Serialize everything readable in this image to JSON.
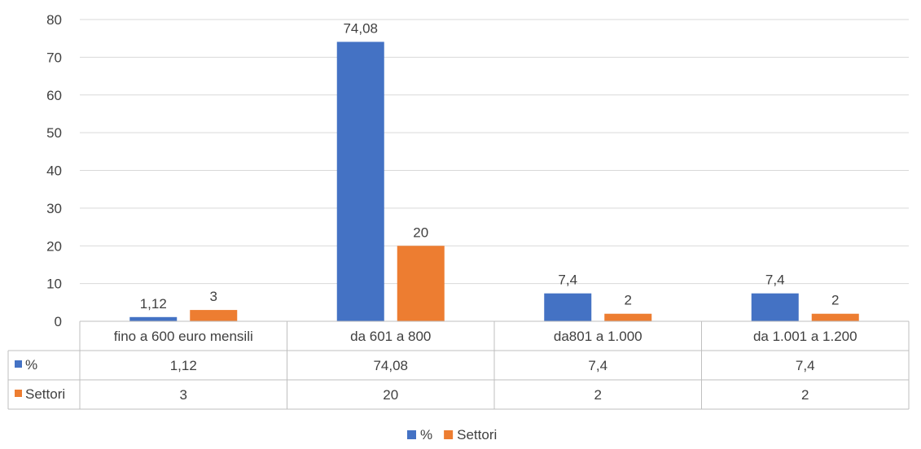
{
  "chart_data": {
    "type": "bar",
    "categories": [
      "fino a 600 euro mensili",
      "da 601 a 800",
      "da801 a 1.000",
      "da 1.001 a 1.200"
    ],
    "series": [
      {
        "name": "%",
        "values": [
          1.12,
          74.08,
          7.4,
          7.4
        ],
        "labels": [
          "1,12",
          "74,08",
          "7,4",
          "7,4"
        ],
        "color": "#4472c4"
      },
      {
        "name": "Settori",
        "values": [
          3,
          20,
          2,
          2
        ],
        "labels": [
          "3",
          "20",
          "2",
          "2"
        ],
        "color": "#ed7d31"
      }
    ],
    "ylim": [
      0,
      80
    ],
    "yticks": [
      "0",
      "10",
      "20",
      "30",
      "40",
      "50",
      "60",
      "70",
      "80"
    ],
    "grid": true,
    "legend": "bottom",
    "data_table": true,
    "title": "",
    "xlabel": "",
    "ylabel": ""
  }
}
